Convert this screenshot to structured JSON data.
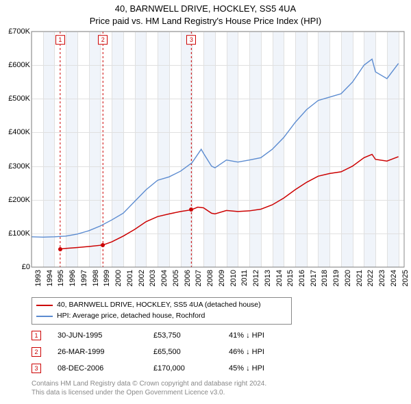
{
  "title": {
    "line1": "40, BARNWELL DRIVE, HOCKLEY, SS5 4UA",
    "line2": "Price paid vs. HM Land Registry's House Price Index (HPI)"
  },
  "chart": {
    "type": "line",
    "background_color": "#ffffff",
    "band_color": "#f0f4fa",
    "grid_color": "#e0e0e0",
    "x_min": 1993,
    "x_max": 2025.5,
    "x_ticks": [
      1993,
      1994,
      1995,
      1996,
      1997,
      1998,
      1999,
      2000,
      2001,
      2002,
      2003,
      2004,
      2005,
      2006,
      2007,
      2008,
      2009,
      2010,
      2011,
      2012,
      2013,
      2014,
      2015,
      2016,
      2017,
      2018,
      2019,
      2020,
      2021,
      2022,
      2023,
      2024,
      2025
    ],
    "x_band_years": [
      1994,
      1996,
      1998,
      2000,
      2002,
      2004,
      2006,
      2008,
      2010,
      2012,
      2014,
      2016,
      2018,
      2020,
      2022,
      2024
    ],
    "y_min": 0,
    "y_max": 700000,
    "y_ticks": [
      0,
      100000,
      200000,
      300000,
      400000,
      500000,
      600000,
      700000
    ],
    "y_tick_labels": [
      "£0",
      "£100K",
      "£200K",
      "£300K",
      "£400K",
      "£500K",
      "£600K",
      "£700K"
    ],
    "axis_fontsize": 11,
    "series": [
      {
        "name": "40, BARNWELL DRIVE, HOCKLEY, SS5 4UA (detached house)",
        "color": "#cc0000",
        "line_width": 1.5,
        "data": [
          [
            1995.5,
            53750
          ],
          [
            1996,
            55500
          ],
          [
            1997,
            58000
          ],
          [
            1998,
            61000
          ],
          [
            1999.23,
            65500
          ],
          [
            2000,
            75000
          ],
          [
            2001,
            92000
          ],
          [
            2002,
            112000
          ],
          [
            2003,
            135000
          ],
          [
            2004,
            150000
          ],
          [
            2005,
            158000
          ],
          [
            2006,
            165000
          ],
          [
            2006.94,
            170000
          ],
          [
            2007.5,
            178000
          ],
          [
            2008,
            176000
          ],
          [
            2008.7,
            160000
          ],
          [
            2009,
            158000
          ],
          [
            2010,
            168000
          ],
          [
            2011,
            165000
          ],
          [
            2012,
            167000
          ],
          [
            2013,
            172000
          ],
          [
            2014,
            185000
          ],
          [
            2015,
            205000
          ],
          [
            2016,
            230000
          ],
          [
            2017,
            252000
          ],
          [
            2018,
            270000
          ],
          [
            2019,
            278000
          ],
          [
            2020,
            283000
          ],
          [
            2021,
            300000
          ],
          [
            2022,
            325000
          ],
          [
            2022.7,
            335000
          ],
          [
            2023,
            320000
          ],
          [
            2024,
            315000
          ],
          [
            2025,
            328000
          ]
        ]
      },
      {
        "name": "HPI: Average price, detached house, Rochford",
        "color": "#5b8bd0",
        "line_width": 1.4,
        "data": [
          [
            1993,
            90000
          ],
          [
            1994,
            89000
          ],
          [
            1995,
            90000
          ],
          [
            1996,
            92000
          ],
          [
            1997,
            98000
          ],
          [
            1998,
            108000
          ],
          [
            1999,
            122000
          ],
          [
            2000,
            140000
          ],
          [
            2001,
            160000
          ],
          [
            2002,
            195000
          ],
          [
            2003,
            230000
          ],
          [
            2004,
            258000
          ],
          [
            2005,
            268000
          ],
          [
            2006,
            285000
          ],
          [
            2007,
            310000
          ],
          [
            2007.8,
            350000
          ],
          [
            2008,
            338000
          ],
          [
            2008.7,
            300000
          ],
          [
            2009,
            295000
          ],
          [
            2010,
            318000
          ],
          [
            2011,
            312000
          ],
          [
            2012,
            318000
          ],
          [
            2013,
            325000
          ],
          [
            2014,
            350000
          ],
          [
            2015,
            385000
          ],
          [
            2016,
            430000
          ],
          [
            2017,
            468000
          ],
          [
            2018,
            495000
          ],
          [
            2019,
            505000
          ],
          [
            2020,
            515000
          ],
          [
            2021,
            550000
          ],
          [
            2022,
            600000
          ],
          [
            2022.7,
            618000
          ],
          [
            2023,
            580000
          ],
          [
            2024,
            560000
          ],
          [
            2025,
            605000
          ]
        ]
      }
    ],
    "sale_markers": [
      {
        "n": "1",
        "year": 1995.5,
        "color": "#cc0000",
        "dot_y": 53750
      },
      {
        "n": "2",
        "year": 1999.23,
        "color": "#cc0000",
        "dot_y": 65500
      },
      {
        "n": "3",
        "year": 2006.94,
        "color": "#cc0000",
        "dot_y": 170000
      }
    ]
  },
  "legend": {
    "items": [
      {
        "color": "#cc0000",
        "label": "40, BARNWELL DRIVE, HOCKLEY, SS5 4UA (detached house)"
      },
      {
        "color": "#5b8bd0",
        "label": "HPI: Average price, detached house, Rochford"
      }
    ]
  },
  "sales": [
    {
      "n": "1",
      "color": "#cc0000",
      "date": "30-JUN-1995",
      "price": "£53,750",
      "diff": "41% ↓ HPI"
    },
    {
      "n": "2",
      "color": "#cc0000",
      "date": "26-MAR-1999",
      "price": "£65,500",
      "diff": "46% ↓ HPI"
    },
    {
      "n": "3",
      "color": "#cc0000",
      "date": "08-DEC-2006",
      "price": "£170,000",
      "diff": "45% ↓ HPI"
    }
  ],
  "footer": {
    "line1": "Contains HM Land Registry data © Crown copyright and database right 2024.",
    "line2": "This data is licensed under the Open Government Licence v3.0."
  }
}
